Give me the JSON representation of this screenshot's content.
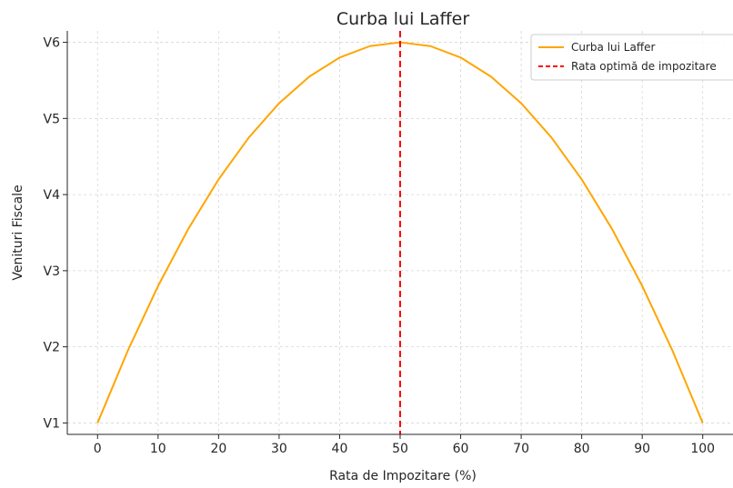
{
  "chart_data": {
    "type": "line",
    "title": "Curba lui Laffer",
    "xlabel": "Rata de Impozitare (%)",
    "ylabel": "Venituri Fiscale",
    "xlim": [
      -5,
      105
    ],
    "ylim": [
      0.85,
      6.15
    ],
    "x_ticks": [
      0,
      10,
      20,
      30,
      40,
      50,
      60,
      70,
      80,
      90,
      100
    ],
    "x_tick_labels": [
      "0",
      "10",
      "20",
      "30",
      "40",
      "50",
      "60",
      "70",
      "80",
      "90",
      "100"
    ],
    "y_ticks": [
      1,
      2,
      3,
      4,
      5,
      6
    ],
    "y_tick_labels": [
      "V1",
      "V2",
      "V3",
      "V4",
      "V5",
      "V6"
    ],
    "grid": true,
    "legend_position": "top-right",
    "series": [
      {
        "name": "Curba lui Laffer",
        "color": "#FFA500",
        "style": "solid",
        "x": [
          0,
          5,
          10,
          15,
          20,
          25,
          30,
          35,
          40,
          45,
          50,
          55,
          60,
          65,
          70,
          75,
          80,
          85,
          90,
          95,
          100
        ],
        "y": [
          1.0,
          1.95,
          2.8,
          3.55,
          4.2,
          4.75,
          5.2,
          5.55,
          5.8,
          5.95,
          6.0,
          5.95,
          5.8,
          5.55,
          5.2,
          4.75,
          4.2,
          3.55,
          2.8,
          1.95,
          1.0
        ]
      }
    ],
    "vlines": [
      {
        "name": "Rata optimă de impozitare",
        "x": 50,
        "color": "#FF0000",
        "style": "dashed"
      }
    ]
  }
}
